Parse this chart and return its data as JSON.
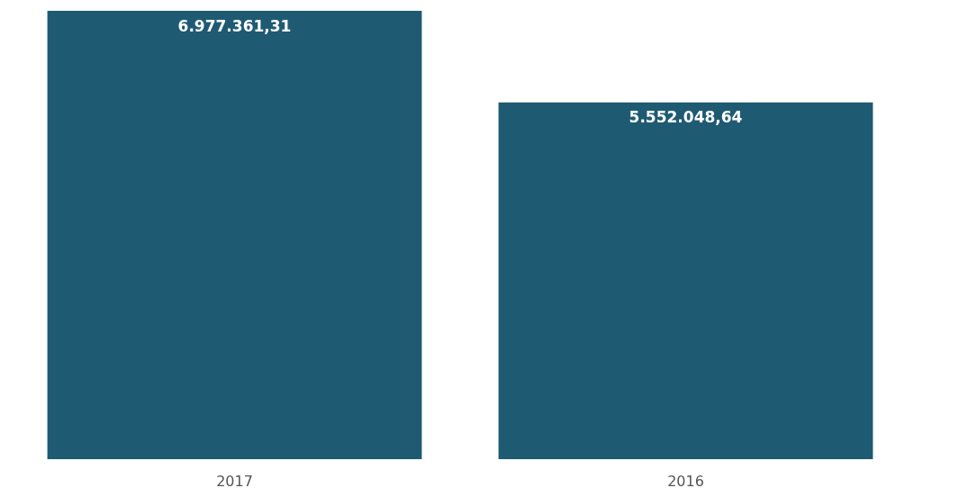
{
  "chart_data": {
    "type": "bar",
    "categories": [
      "2017",
      "2016"
    ],
    "values": [
      6977361.31,
      5552048.64
    ],
    "value_labels": [
      "6.977.361,31",
      "5.552.048,64"
    ],
    "color": "#1f5a73"
  }
}
